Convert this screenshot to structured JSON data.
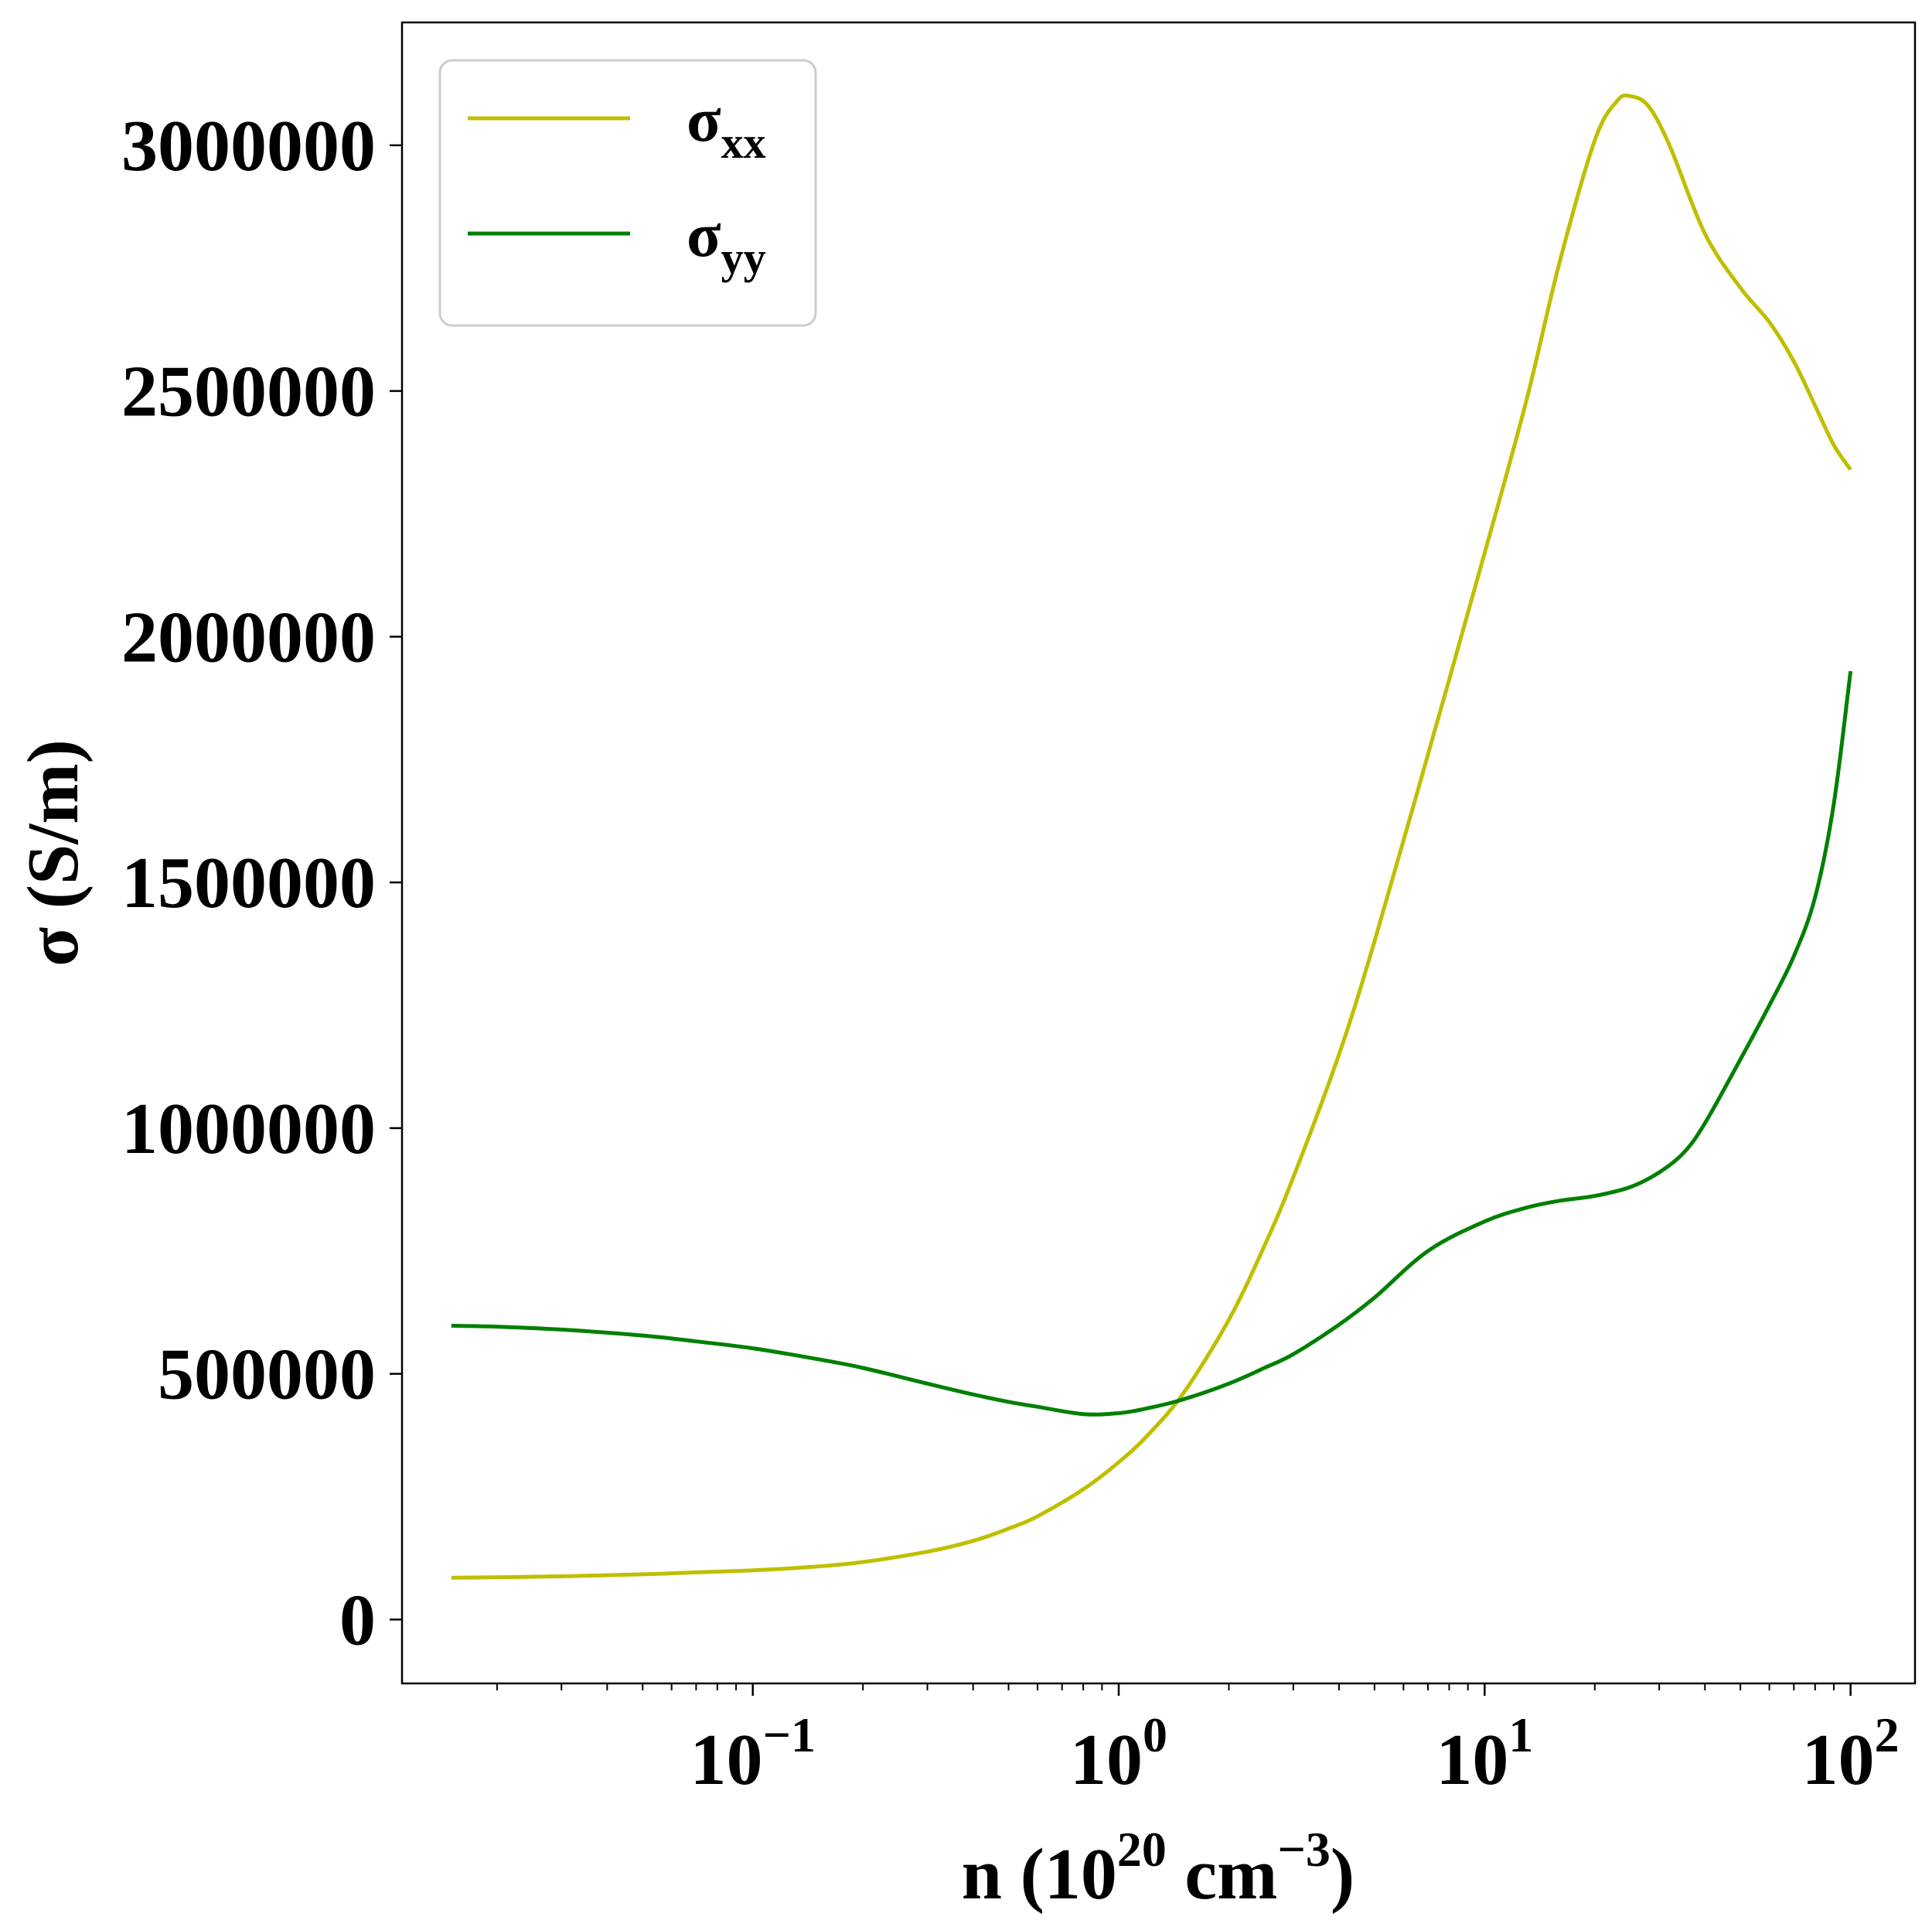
{
  "chart_data": {
    "type": "line",
    "xscale": "log",
    "xlim": [
      0.011,
      150
    ],
    "ylim": [
      -130000,
      3250000
    ],
    "x_ticks": [
      {
        "value": 0.1,
        "base": "10",
        "exp": "−1"
      },
      {
        "value": 1,
        "base": "10",
        "exp": "0"
      },
      {
        "value": 10,
        "base": "10",
        "exp": "1"
      },
      {
        "value": 100,
        "base": "10",
        "exp": "2"
      }
    ],
    "y_ticks": [
      {
        "value": 0,
        "label": "0"
      },
      {
        "value": 500000,
        "label": "500000"
      },
      {
        "value": 1000000,
        "label": "1000000"
      },
      {
        "value": 1500000,
        "label": "1500000"
      },
      {
        "value": 2000000,
        "label": "2000000"
      },
      {
        "value": 2500000,
        "label": "2500000"
      },
      {
        "value": 3000000,
        "label": "3000000"
      }
    ],
    "xlabel": {
      "prefix": "n (10",
      "sup1": "20",
      "mid": " cm",
      "sup2": "−3",
      "suffix": ")"
    },
    "ylabel": "σ (S/m)",
    "grid": false,
    "legend": {
      "position": "top-left"
    },
    "series": [
      {
        "name": "σxx",
        "name_main": "σ",
        "name_sub": "xx",
        "color": "#bfbf00",
        "x": [
          0.015,
          0.02,
          0.03,
          0.05,
          0.07,
          0.1,
          0.15,
          0.2,
          0.3,
          0.4,
          0.5,
          0.6,
          0.8,
          1.0,
          1.2,
          1.5,
          2.0,
          2.5,
          3.0,
          4.0,
          5.0,
          7.0,
          10.0,
          13.0,
          16.0,
          20.0,
          23.0,
          25.0,
          28.0,
          32.0,
          40.0,
          50.0,
          60.0,
          70.0,
          80.0,
          90.0,
          100.0
        ],
        "y": [
          85000,
          86000,
          88000,
          92000,
          96000,
          100000,
          108000,
          117000,
          138000,
          160000,
          185000,
          210000,
          265000,
          320000,
          375000,
          460000,
          610000,
          760000,
          900000,
          1150000,
          1380000,
          1760000,
          2170000,
          2480000,
          2760000,
          3010000,
          3090000,
          3100000,
          3080000,
          3000000,
          2820000,
          2710000,
          2640000,
          2560000,
          2470000,
          2390000,
          2340000
        ]
      },
      {
        "name": "σyy",
        "name_main": "σ",
        "name_sub": "yy",
        "color": "#008000",
        "x": [
          0.015,
          0.02,
          0.03,
          0.05,
          0.07,
          0.1,
          0.15,
          0.2,
          0.3,
          0.4,
          0.5,
          0.6,
          0.8,
          1.0,
          1.2,
          1.5,
          2.0,
          2.5,
          3.0,
          4.0,
          5.0,
          7.0,
          10.0,
          13.0,
          16.0,
          20.0,
          25.0,
          30.0,
          35.0,
          40.0,
          50.0,
          60.0,
          70.0,
          80.0,
          90.0,
          100.0
        ],
        "y": [
          598000,
          596000,
          590000,
          578000,
          566000,
          552000,
          530000,
          512000,
          480000,
          458000,
          443000,
          433000,
          418000,
          420000,
          430000,
          448000,
          480000,
          512000,
          540000,
          600000,
          655000,
          750000,
          810000,
          838000,
          852000,
          862000,
          880000,
          910000,
          950000,
          1010000,
          1140000,
          1250000,
          1350000,
          1470000,
          1660000,
          1930000
        ]
      }
    ]
  }
}
